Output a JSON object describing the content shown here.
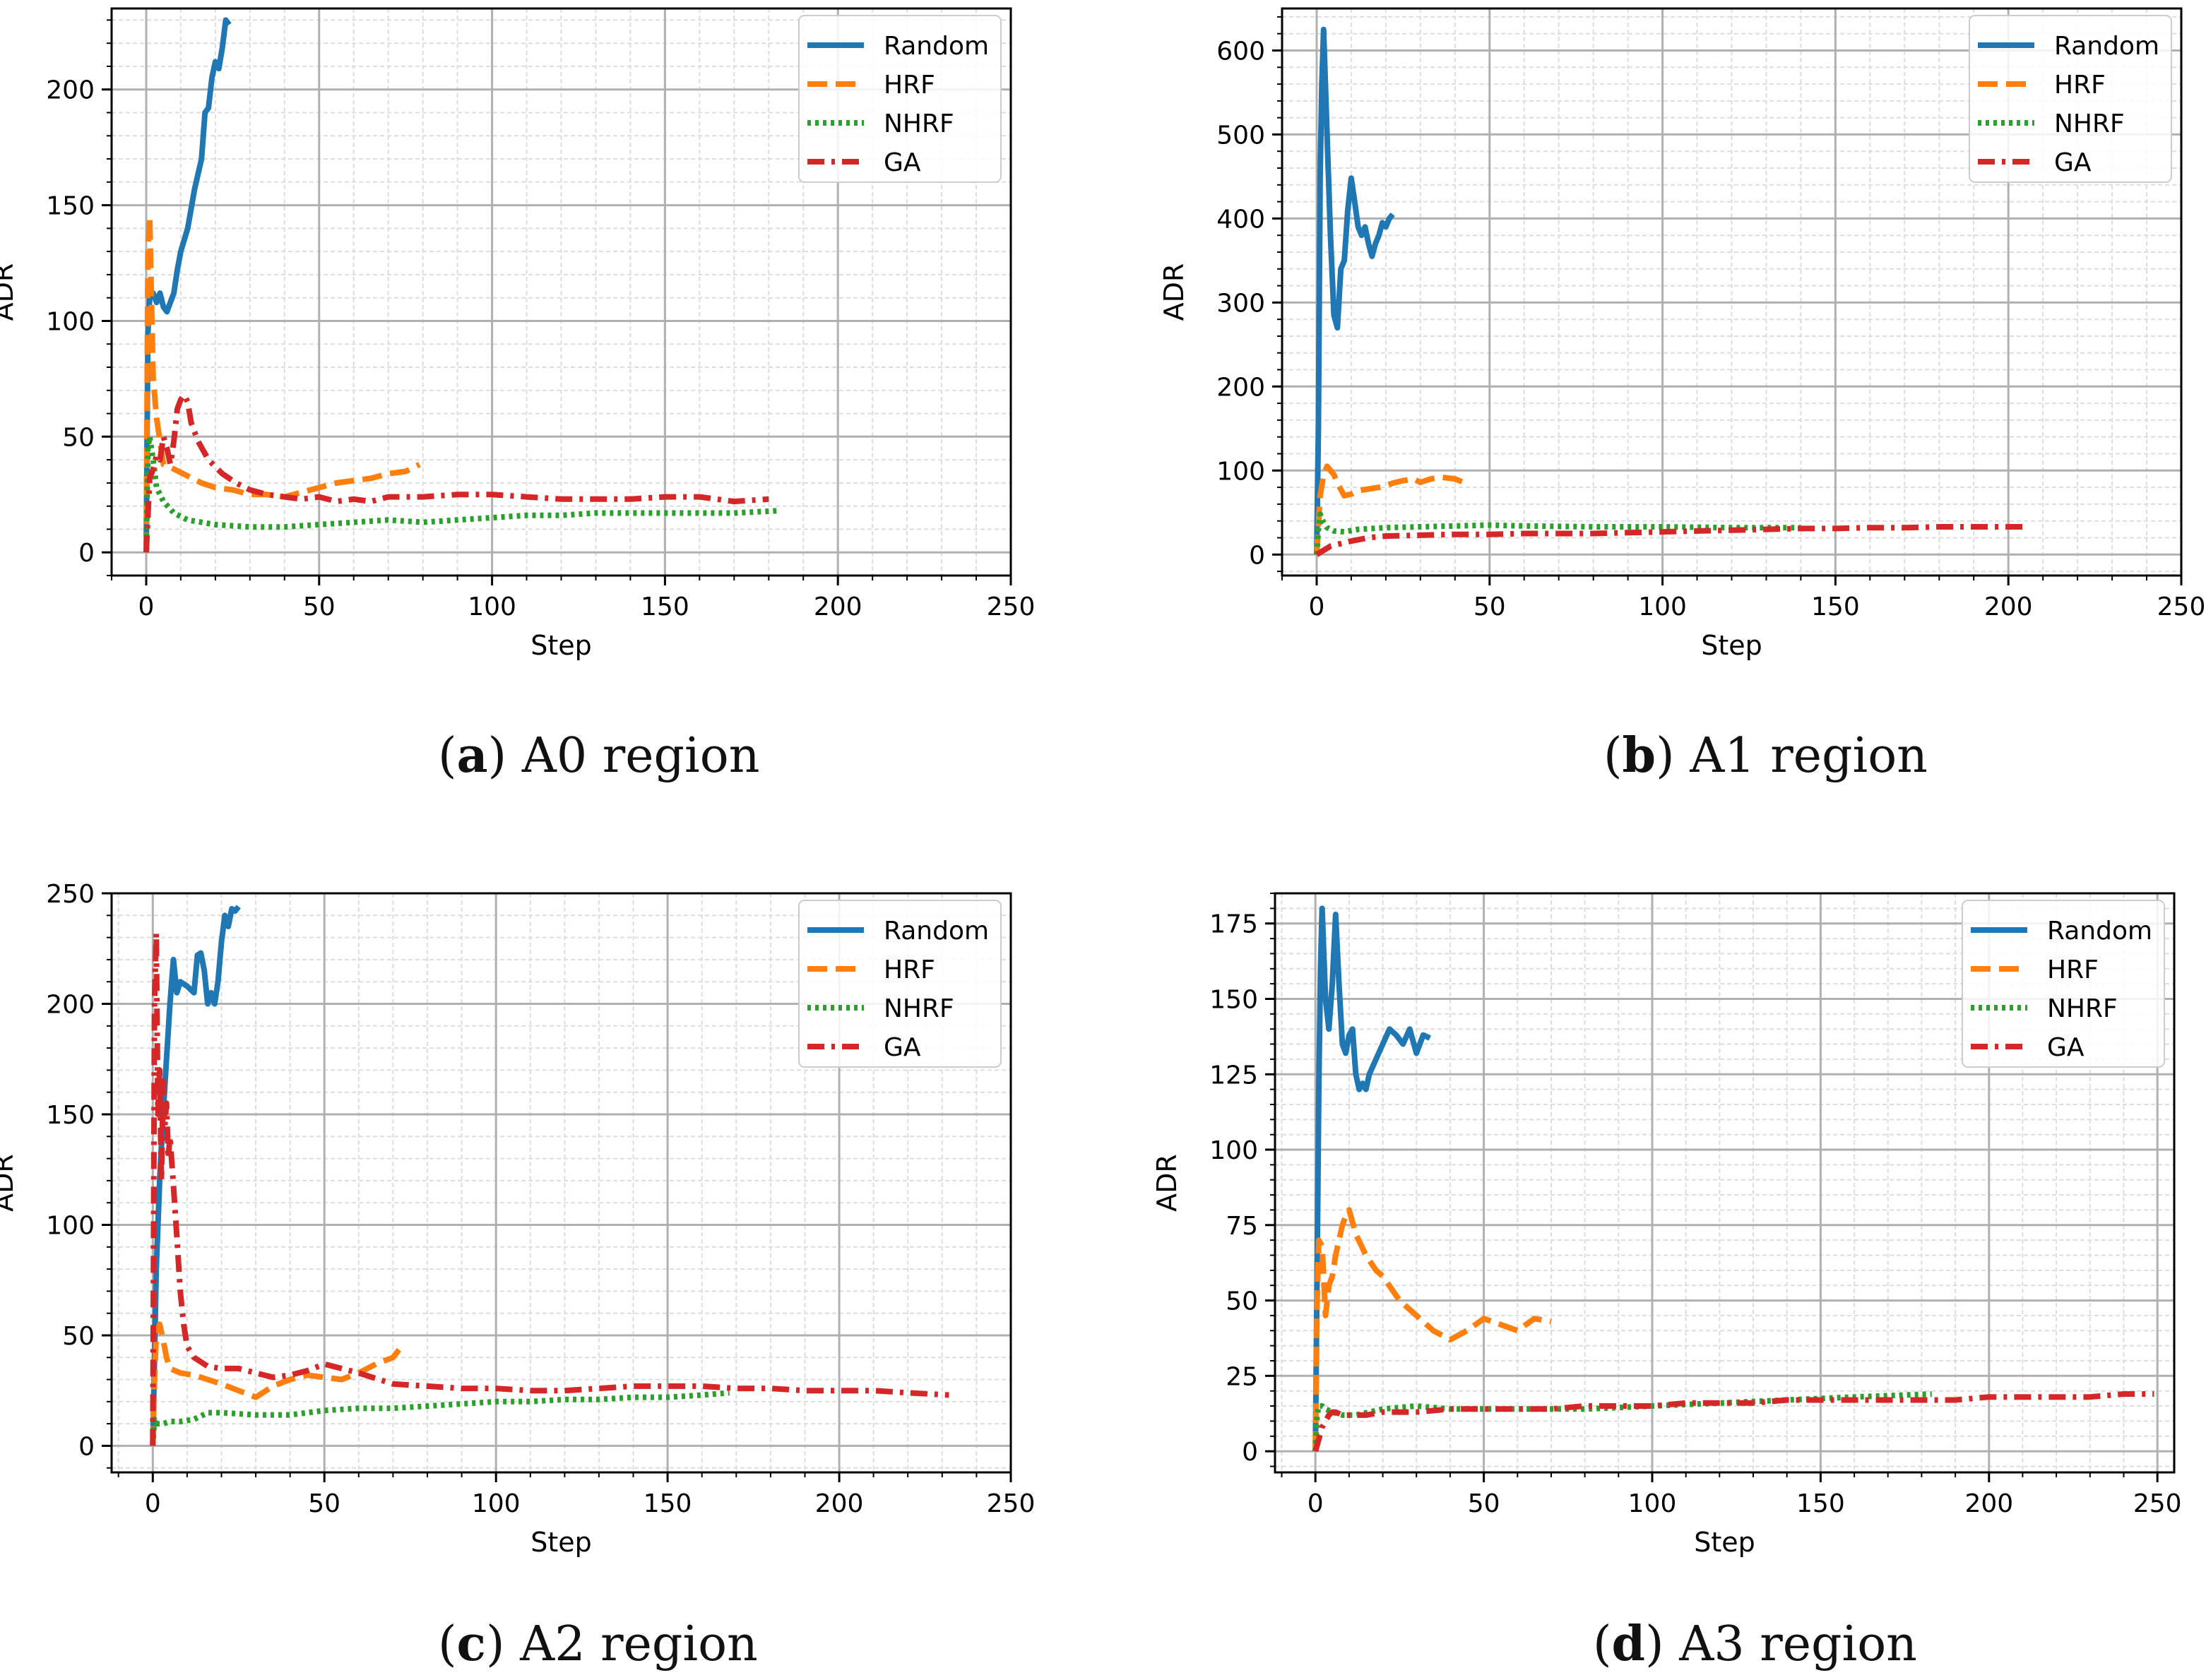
{
  "figure": {
    "captions": [
      {
        "letter": "a",
        "text": "A0 region"
      },
      {
        "letter": "b",
        "text": "A1 region"
      },
      {
        "letter": "c",
        "text": "A2 region"
      },
      {
        "letter": "d",
        "text": "A3 region"
      }
    ]
  },
  "colors": {
    "Random": "#1f77b4",
    "HRF": "#ff7f0e",
    "NHRF": "#2ca02c",
    "GA": "#d62728",
    "grid_major": "#b0b0b0",
    "grid_minor": "#dddddd"
  },
  "chart_data": [
    {
      "type": "line",
      "xlabel": "Step",
      "ylabel": "ADR",
      "xlim": [
        -10,
        250
      ],
      "ylim": [
        -10,
        235
      ],
      "xticks": [
        0,
        50,
        100,
        150,
        200,
        250
      ],
      "yticks": [
        0,
        50,
        100,
        150,
        200
      ],
      "grid": true,
      "legend_position": "top-right",
      "series": [
        {
          "name": "Random",
          "style": "solid",
          "x": [
            0,
            0.5,
            1,
            2,
            3,
            4,
            5,
            6,
            7,
            8,
            9,
            10,
            12,
            14,
            16,
            17,
            18,
            19,
            20,
            21,
            22,
            23,
            24
          ],
          "y": [
            0,
            95,
            110,
            112,
            108,
            112,
            106,
            104,
            108,
            112,
            122,
            130,
            140,
            157,
            170,
            190,
            192,
            205,
            212,
            209,
            218,
            230,
            228
          ]
        },
        {
          "name": "HRF",
          "style": "dashed",
          "x": [
            0,
            0.5,
            1,
            1.5,
            2,
            3,
            4,
            5,
            8,
            12,
            16,
            20,
            25,
            30,
            35,
            40,
            45,
            50,
            55,
            60,
            65,
            70,
            75,
            79
          ],
          "y": [
            0,
            130,
            145,
            110,
            75,
            58,
            48,
            38,
            36,
            33,
            30,
            28,
            27,
            25,
            25,
            24,
            26,
            28,
            30,
            31,
            32,
            34,
            35,
            38
          ]
        },
        {
          "name": "NHRF",
          "style": "dotted",
          "x": [
            0,
            0.5,
            1,
            2,
            3,
            5,
            8,
            12,
            20,
            30,
            40,
            50,
            60,
            70,
            80,
            90,
            100,
            110,
            120,
            130,
            140,
            150,
            160,
            170,
            183
          ],
          "y": [
            0,
            45,
            50,
            40,
            28,
            22,
            17,
            14,
            12,
            11,
            11,
            12,
            13,
            14,
            13,
            14,
            15,
            16,
            16,
            17,
            17,
            17,
            17,
            17,
            18
          ]
        },
        {
          "name": "GA",
          "style": "dashdot",
          "x": [
            0,
            1,
            2,
            3,
            4,
            5,
            6,
            7,
            8,
            9,
            10,
            11,
            12,
            13,
            15,
            18,
            22,
            26,
            30,
            35,
            40,
            45,
            50,
            55,
            60,
            65,
            70,
            80,
            90,
            100,
            110,
            120,
            130,
            140,
            150,
            160,
            170,
            180
          ],
          "y": [
            0,
            32,
            36,
            42,
            40,
            50,
            45,
            38,
            48,
            62,
            66,
            68,
            65,
            56,
            48,
            40,
            34,
            30,
            27,
            25,
            24,
            23,
            24,
            22,
            23,
            22,
            24,
            24,
            25,
            25,
            24,
            23,
            23,
            23,
            24,
            24,
            22,
            23
          ]
        }
      ]
    },
    {
      "type": "line",
      "xlabel": "Step",
      "ylabel": "ADR",
      "xlim": [
        -10,
        250
      ],
      "ylim": [
        -25,
        650
      ],
      "xticks": [
        0,
        50,
        100,
        150,
        200,
        250
      ],
      "yticks": [
        0,
        100,
        200,
        300,
        400,
        500,
        600
      ],
      "grid": true,
      "legend_position": "top-right",
      "series": [
        {
          "name": "Random",
          "style": "solid",
          "x": [
            0,
            0.5,
            1,
            1.5,
            2,
            3,
            4,
            5,
            6,
            7,
            8,
            9,
            10,
            11,
            12,
            13,
            14,
            15,
            16,
            17,
            18,
            19,
            20,
            21,
            22
          ],
          "y": [
            0,
            150,
            450,
            560,
            625,
            500,
            380,
            285,
            270,
            340,
            350,
            410,
            448,
            420,
            390,
            380,
            390,
            370,
            355,
            370,
            380,
            395,
            390,
            400,
            405
          ]
        },
        {
          "name": "HRF",
          "style": "dashed",
          "x": [
            0,
            1,
            2,
            3,
            4,
            5,
            6,
            8,
            10,
            12,
            15,
            18,
            20,
            22,
            25,
            28,
            30,
            33,
            36,
            40,
            43
          ],
          "y": [
            0,
            70,
            95,
            105,
            100,
            95,
            85,
            70,
            72,
            76,
            78,
            80,
            82,
            85,
            88,
            90,
            86,
            90,
            92,
            90,
            85
          ]
        },
        {
          "name": "NHRF",
          "style": "dotted",
          "x": [
            0,
            0.5,
            1,
            2,
            3,
            5,
            8,
            12,
            20,
            30,
            40,
            50,
            60,
            80,
            100,
            120,
            140
          ],
          "y": [
            0,
            30,
            48,
            38,
            32,
            28,
            27,
            30,
            32,
            33,
            34,
            35,
            34,
            33,
            33,
            32,
            32
          ]
        },
        {
          "name": "GA",
          "style": "dashdot",
          "x": [
            0,
            2,
            4,
            6,
            8,
            10,
            15,
            20,
            30,
            40,
            50,
            60,
            70,
            80,
            90,
            100,
            110,
            120,
            130,
            140,
            150,
            160,
            170,
            180,
            190,
            200,
            205
          ],
          "y": [
            0,
            5,
            10,
            12,
            14,
            16,
            20,
            22,
            23,
            24,
            24,
            25,
            25,
            25,
            26,
            27,
            28,
            29,
            30,
            31,
            31,
            32,
            32,
            33,
            33,
            33,
            33
          ]
        }
      ]
    },
    {
      "type": "line",
      "xlabel": "Step",
      "ylabel": "ADR",
      "xlim": [
        -12,
        250
      ],
      "ylim": [
        -12,
        250
      ],
      "xticks": [
        0,
        50,
        100,
        150,
        200,
        250
      ],
      "yticks": [
        0,
        50,
        100,
        150,
        200,
        250
      ],
      "grid": true,
      "legend_position": "top-right",
      "series": [
        {
          "name": "Random",
          "style": "solid",
          "x": [
            0,
            1,
            2,
            3,
            4,
            5,
            6,
            7,
            8,
            10,
            12,
            13,
            14,
            15,
            16,
            17,
            18,
            19,
            20,
            21,
            22,
            23,
            24,
            25
          ],
          "y": [
            0,
            80,
            120,
            150,
            175,
            200,
            220,
            205,
            210,
            208,
            205,
            222,
            223,
            215,
            200,
            205,
            200,
            210,
            228,
            240,
            235,
            243,
            242,
            244
          ]
        },
        {
          "name": "HRF",
          "style": "dashed",
          "x": [
            0,
            0.5,
            1,
            2,
            3,
            4,
            5,
            8,
            12,
            16,
            20,
            25,
            30,
            35,
            40,
            45,
            50,
            55,
            60,
            65,
            70,
            72
          ],
          "y": [
            0,
            30,
            50,
            55,
            48,
            40,
            35,
            33,
            32,
            30,
            28,
            25,
            22,
            27,
            30,
            32,
            31,
            30,
            33,
            37,
            40,
            44
          ]
        },
        {
          "name": "NHRF",
          "style": "dotted",
          "x": [
            0,
            0.5,
            1,
            3,
            5,
            8,
            12,
            16,
            20,
            30,
            40,
            50,
            60,
            70,
            80,
            90,
            100,
            110,
            120,
            130,
            140,
            150,
            160,
            168
          ],
          "y": [
            0,
            12,
            10,
            10,
            11,
            11,
            12,
            15,
            15,
            14,
            14,
            16,
            17,
            17,
            18,
            19,
            20,
            20,
            21,
            21,
            22,
            22,
            23,
            24
          ]
        },
        {
          "name": "GA",
          "style": "dashdot",
          "x": [
            0,
            0.5,
            1,
            1.5,
            2,
            2.5,
            3,
            3.5,
            4,
            4.5,
            5,
            6,
            7,
            8,
            9,
            10,
            12,
            14,
            16,
            20,
            25,
            30,
            35,
            40,
            45,
            50,
            60,
            70,
            80,
            90,
            100,
            110,
            120,
            130,
            140,
            150,
            160,
            170,
            180,
            190,
            200,
            210,
            220,
            232
          ],
          "y": [
            0,
            200,
            232,
            150,
            170,
            120,
            165,
            145,
            155,
            130,
            140,
            118,
            95,
            70,
            55,
            45,
            40,
            38,
            36,
            35,
            35,
            33,
            31,
            32,
            34,
            37,
            33,
            28,
            27,
            26,
            26,
            25,
            25,
            26,
            27,
            27,
            27,
            26,
            26,
            25,
            25,
            25,
            24,
            23
          ]
        }
      ]
    },
    {
      "type": "line",
      "xlabel": "Step",
      "ylabel": "ADR",
      "xlim": [
        -12,
        255
      ],
      "ylim": [
        -7,
        185
      ],
      "xticks": [
        0,
        50,
        100,
        150,
        200,
        250
      ],
      "yticks": [
        0,
        25,
        50,
        75,
        100,
        125,
        150,
        175
      ],
      "grid": true,
      "legend_position": "top-right",
      "series": [
        {
          "name": "Random",
          "style": "solid",
          "x": [
            0,
            0.5,
            1,
            1.5,
            2,
            3,
            4,
            5,
            6,
            7,
            8,
            9,
            10,
            11,
            12,
            13,
            14,
            15,
            16,
            18,
            20,
            22,
            24,
            26,
            28,
            30,
            32,
            34
          ],
          "y": [
            0,
            60,
            120,
            160,
            180,
            150,
            140,
            155,
            178,
            155,
            135,
            132,
            138,
            140,
            125,
            120,
            122,
            120,
            125,
            130,
            135,
            140,
            138,
            135,
            140,
            132,
            138,
            137
          ]
        },
        {
          "name": "HRF",
          "style": "dashed",
          "x": [
            0,
            0.5,
            1,
            2,
            3,
            4,
            5,
            6,
            7,
            8,
            9,
            10,
            12,
            15,
            18,
            20,
            25,
            30,
            35,
            40,
            45,
            50,
            55,
            60,
            65,
            70
          ],
          "y": [
            0,
            50,
            70,
            68,
            45,
            55,
            58,
            65,
            70,
            75,
            78,
            80,
            72,
            65,
            60,
            58,
            50,
            45,
            40,
            37,
            40,
            44,
            42,
            40,
            44,
            43
          ]
        },
        {
          "name": "NHRF",
          "style": "dotted",
          "x": [
            0,
            0.5,
            1,
            2,
            3,
            5,
            8,
            12,
            20,
            30,
            40,
            50,
            60,
            80,
            100,
            120,
            140,
            160,
            183
          ],
          "y": [
            0,
            12,
            15,
            15,
            14,
            13,
            12,
            12,
            14,
            15,
            14,
            14,
            14,
            14,
            15,
            16,
            17,
            18,
            19
          ]
        },
        {
          "name": "GA",
          "style": "dashdot",
          "x": [
            0,
            1,
            2,
            3,
            4,
            5,
            6,
            8,
            10,
            15,
            20,
            30,
            40,
            50,
            60,
            70,
            80,
            90,
            100,
            110,
            120,
            130,
            140,
            150,
            160,
            170,
            180,
            190,
            200,
            210,
            220,
            230,
            240,
            249
          ],
          "y": [
            0,
            4,
            8,
            10,
            12,
            13,
            13,
            12,
            12,
            12,
            13,
            13,
            14,
            14,
            14,
            14,
            15,
            15,
            15,
            16,
            16,
            16,
            17,
            17,
            17,
            17,
            17,
            17,
            18,
            18,
            18,
            18,
            19,
            19
          ]
        }
      ]
    }
  ]
}
